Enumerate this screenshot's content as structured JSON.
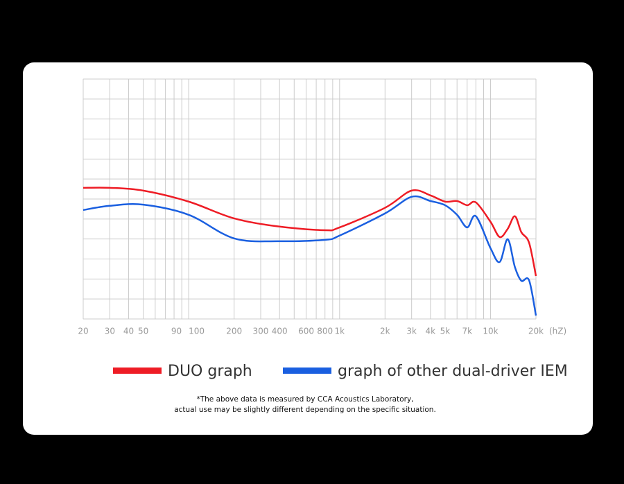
{
  "chart_data": {
    "type": "line",
    "xscale": "log",
    "x_unit": "(hZ)",
    "x": [
      20,
      30,
      50,
      100,
      200,
      400,
      800,
      1000,
      2000,
      3000,
      4000,
      5000,
      6000,
      7000,
      8000,
      10000,
      11500,
      13000,
      14500,
      16000,
      18000,
      20000
    ],
    "series": [
      {
        "name": "DUO graph",
        "color": "#ee1c25",
        "values": [
          6.56,
          6.56,
          6.42,
          5.87,
          5.03,
          4.62,
          4.44,
          4.58,
          5.56,
          6.42,
          6.18,
          5.87,
          5.9,
          5.69,
          5.83,
          4.86,
          4.1,
          4.51,
          5.14,
          4.34,
          3.82,
          2.15
        ]
      },
      {
        "name": "graph of other dual-driver IEM",
        "color": "#1a5fe0",
        "values": [
          5.45,
          5.66,
          5.72,
          5.21,
          4.03,
          3.89,
          3.96,
          4.17,
          5.28,
          6.11,
          5.9,
          5.69,
          5.21,
          4.58,
          5.14,
          3.54,
          2.85,
          3.99,
          2.6,
          1.91,
          1.94,
          0.17
        ]
      }
    ],
    "xlim": [
      20,
      20000
    ],
    "xticks": [
      20,
      30,
      40,
      50,
      90,
      100,
      200,
      300,
      400,
      600,
      800,
      {
        "value": 1000,
        "label": "1k"
      },
      {
        "value": 2000,
        "label": "2k"
      },
      {
        "value": 3000,
        "label": "3k"
      },
      {
        "value": 4000,
        "label": "4k"
      },
      {
        "value": 5000,
        "label": "5k"
      },
      {
        "value": 7000,
        "label": "7k"
      },
      {
        "value": 10000,
        "label": "10k"
      },
      {
        "value": 20000,
        "label": "20k"
      }
    ],
    "xminor": [
      60,
      70,
      80,
      500,
      700,
      900,
      6000,
      8000,
      9000
    ],
    "ylim": [
      0,
      12
    ],
    "ygrid": [
      0,
      1,
      2,
      3,
      4,
      5,
      6,
      7,
      8,
      9,
      10,
      11,
      12
    ],
    "grid": true,
    "note": [
      "*The above data is measured by CCA Acoustics Laboratory,",
      "actual use may be slightly different depending on the specific situation."
    ]
  }
}
